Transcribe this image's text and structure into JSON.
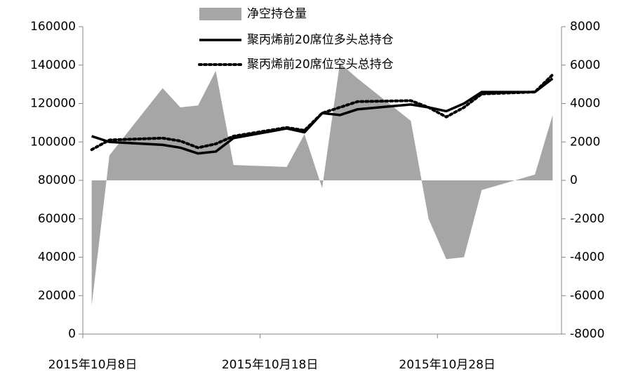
{
  "chart_data": {
    "type": "line",
    "x": [
      "2015-10-08",
      "2015-10-09",
      "2015-10-12",
      "2015-10-13",
      "2015-10-14",
      "2015-10-15",
      "2015-10-16",
      "2015-10-19",
      "2015-10-20",
      "2015-10-21",
      "2015-10-22",
      "2015-10-23",
      "2015-10-26",
      "2015-10-27",
      "2015-10-28",
      "2015-10-29",
      "2015-10-30",
      "2015-11-02",
      "2015-11-03"
    ],
    "series": [
      {
        "name": "净空持仓量",
        "color": "#a6a6a6",
        "style": "area",
        "axis": "y2",
        "values": [
          -6500,
          1300,
          4800,
          3800,
          3900,
          5700,
          800,
          700,
          2400,
          -400,
          6100,
          5300,
          3100,
          -2000,
          -4100,
          -4000,
          -500,
          300,
          3400
        ]
      },
      {
        "name": "聚丙烯前20席位多头总持仓",
        "color": "#000000",
        "style": "solid",
        "values": [
          103000,
          100000,
          98500,
          97000,
          94000,
          95000,
          102000,
          107000,
          105000,
          115000,
          114000,
          117000,
          119500,
          118000,
          116000,
          120000,
          126000,
          126000,
          133000
        ]
      },
      {
        "name": "聚丙烯前20席位空头总持仓",
        "color": "#000000",
        "style": "dotted",
        "values": [
          96000,
          101000,
          102000,
          100500,
          97000,
          99000,
          103000,
          107500,
          106000,
          115000,
          118000,
          121000,
          121500,
          118000,
          113000,
          118000,
          125000,
          126000,
          135000
        ]
      }
    ],
    "xlim": [
      "2015-10-08",
      "2015-11-04"
    ],
    "xticks": [
      {
        "value": "2015-10-08",
        "label": "2015年10月8日"
      },
      {
        "value": "2015-10-18",
        "label": "2015年10月18日"
      },
      {
        "value": "2015-10-28",
        "label": "2015年10月28日"
      }
    ],
    "ylim": [
      0,
      160000
    ],
    "yticks": [
      0,
      20000,
      40000,
      60000,
      80000,
      100000,
      120000,
      140000,
      160000
    ],
    "y2lim": [
      -8000,
      8000
    ],
    "y2ticks": [
      -8000,
      -6000,
      -4000,
      -2000,
      0,
      2000,
      4000,
      6000,
      8000
    ],
    "legend": "top"
  }
}
